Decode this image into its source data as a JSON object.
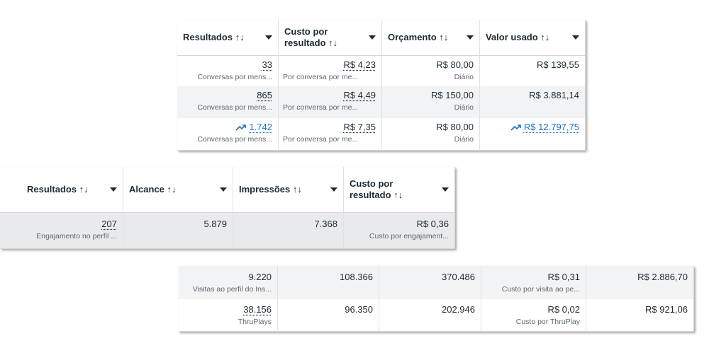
{
  "table1": {
    "headers": [
      "Resultados ↑↓",
      "Custo por\nresultado ↑↓",
      "Orçamento ↑↓",
      "Valor usado ↑↓"
    ],
    "rows": [
      {
        "results": "33",
        "results_sub": "Conversas por mens...",
        "cost": "R$ 4,23",
        "cost_sub": "Por conversa por me...",
        "budget": "R$ 80,00",
        "budget_sub": "Diário",
        "spent": "R$ 139,55"
      },
      {
        "results": "865",
        "results_sub": "Conversas por mens...",
        "cost": "R$ 4,49",
        "cost_sub": "Por conversa por me...",
        "budget": "R$ 150,00",
        "budget_sub": "Diário",
        "spent": "R$ 3.881,14"
      },
      {
        "results": "1.742",
        "results_sub": "Conversas por mens...",
        "cost": "R$ 7,35",
        "cost_sub": "Por conversa por me...",
        "budget": "R$ 80,00",
        "budget_sub": "Diário",
        "spent": "R$ 12.797,75"
      }
    ]
  },
  "table2": {
    "headers": [
      "Resultados ↑↓",
      "Alcance ↑↓",
      "Impressões ↑↓",
      "Custo por\nresultado ↑↓"
    ],
    "row": {
      "results": "207",
      "results_sub": "Engajamento no perfil ...",
      "reach": "5.879",
      "impressions": "7.368",
      "cost": "R$ 0,36",
      "cost_sub": "Custo por engajament..."
    }
  },
  "table3": {
    "rows": [
      {
        "results": "9.220",
        "results_sub": "Visitas ao perfil do Ins...",
        "reach": "108.366",
        "impressions": "370.486",
        "cost": "R$ 0,31",
        "cost_sub": "Custo por visita ao pe...",
        "spent": "R$ 2.886,70"
      },
      {
        "results": "38.156",
        "results_sub": "ThruPlays",
        "reach": "96.350",
        "impressions": "202.946",
        "cost": "R$ 0,02",
        "cost_sub": "Custo por ThruPlay",
        "spent": "R$ 921,06"
      }
    ]
  },
  "colors": {
    "link": "#1a73c6",
    "text": "#1c2b33",
    "subtext": "#606770",
    "shade": "#f2f3f5"
  },
  "icons": [
    "sort-caret-icon",
    "trend-up-icon"
  ]
}
